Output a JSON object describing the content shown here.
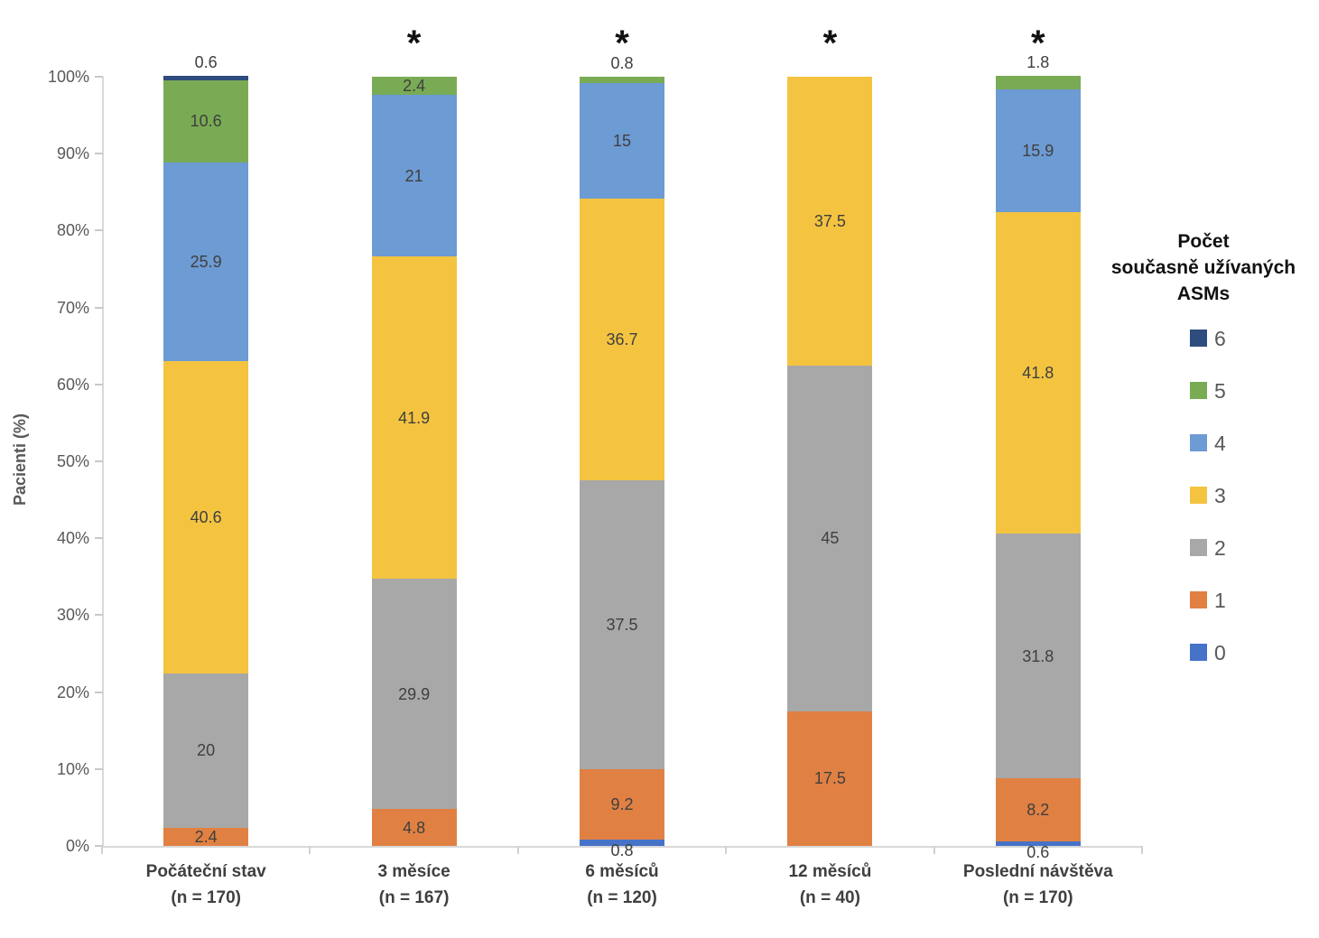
{
  "chart_data": {
    "type": "bar",
    "subtype": "percent-stacked-column",
    "title": "",
    "xlabel": "",
    "ylabel": "Pacienti (%)",
    "ylim": [
      0,
      100
    ],
    "y_tick_labels": [
      "100%",
      "90%",
      "80%",
      "70%",
      "60%",
      "50%",
      "40%",
      "30%",
      "20%",
      "10%",
      "0%"
    ],
    "grid": false,
    "significance_marker": "*",
    "categories": [
      {
        "label": "Počáteční stav",
        "n_label": "(n = 170)",
        "significant": false
      },
      {
        "label": "3 měsíce",
        "n_label": "(n = 167)",
        "significant": true
      },
      {
        "label": "6 měsíců",
        "n_label": "(n = 120)",
        "significant": true
      },
      {
        "label": "12 měsíců",
        "n_label": "(n = 40)",
        "significant": true
      },
      {
        "label": "Poslední návštěva",
        "n_label": "(n = 170)",
        "significant": true
      }
    ],
    "series": [
      {
        "name": "0",
        "color": "#4673C8",
        "values": [
          0,
          0,
          0.8,
          0,
          0.6
        ],
        "labels": [
          "",
          "",
          "0.8",
          "",
          "0.6"
        ]
      },
      {
        "name": "1",
        "color": "#E08143",
        "values": [
          2.4,
          4.8,
          9.2,
          17.5,
          8.2
        ],
        "labels": [
          "2.4",
          "4.8",
          "9.2",
          "17.5",
          "8.2"
        ]
      },
      {
        "name": "2",
        "color": "#A8A8A8",
        "values": [
          20,
          29.9,
          37.5,
          45,
          31.8
        ],
        "labels": [
          "20",
          "29.9",
          "37.5",
          "45",
          "31.8"
        ]
      },
      {
        "name": "3",
        "color": "#F4C441",
        "values": [
          40.6,
          41.9,
          36.7,
          37.5,
          41.8
        ],
        "labels": [
          "40.6",
          "41.9",
          "36.7",
          "37.5",
          "41.8"
        ]
      },
      {
        "name": "4",
        "color": "#6D9BD3",
        "values": [
          25.9,
          21,
          15,
          0,
          15.9
        ],
        "labels": [
          "25.9",
          "21",
          "15",
          "",
          "15.9"
        ]
      },
      {
        "name": "5",
        "color": "#79AB55",
        "values": [
          10.6,
          2.4,
          0.8,
          0,
          1.8
        ],
        "labels": [
          "10.6",
          "2.4",
          "0.8",
          "",
          "1.8"
        ]
      },
      {
        "name": "6",
        "color": "#2E4C7E",
        "values": [
          0.6,
          0,
          0,
          0,
          0
        ],
        "labels": [
          "0.6",
          "",
          "",
          "",
          ""
        ]
      }
    ],
    "legend": {
      "position": "right",
      "title_lines": [
        "Počet",
        "současně užívaných",
        "ASMs"
      ],
      "entries_top_to_bottom": [
        "6",
        "5",
        "4",
        "3",
        "2",
        "1",
        "0"
      ]
    }
  }
}
